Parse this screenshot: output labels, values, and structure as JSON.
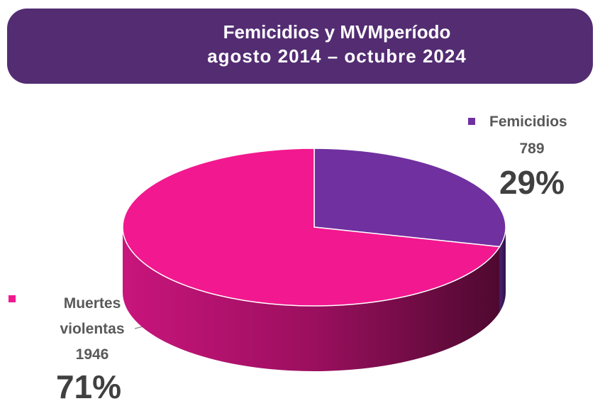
{
  "chart_data": {
    "type": "pie",
    "title": "Femicidios y MVMperíodo",
    "subtitle": "agosto 2014 – octubre 2024",
    "categories": [
      "Femicidios",
      "Muertes violentas"
    ],
    "values": [
      29,
      71
    ],
    "value_labels": [
      "29%",
      "71%"
    ],
    "counts": [
      789,
      1946
    ],
    "colors": [
      "#7030a0",
      "#f2188f"
    ],
    "three_d": true
  }
}
